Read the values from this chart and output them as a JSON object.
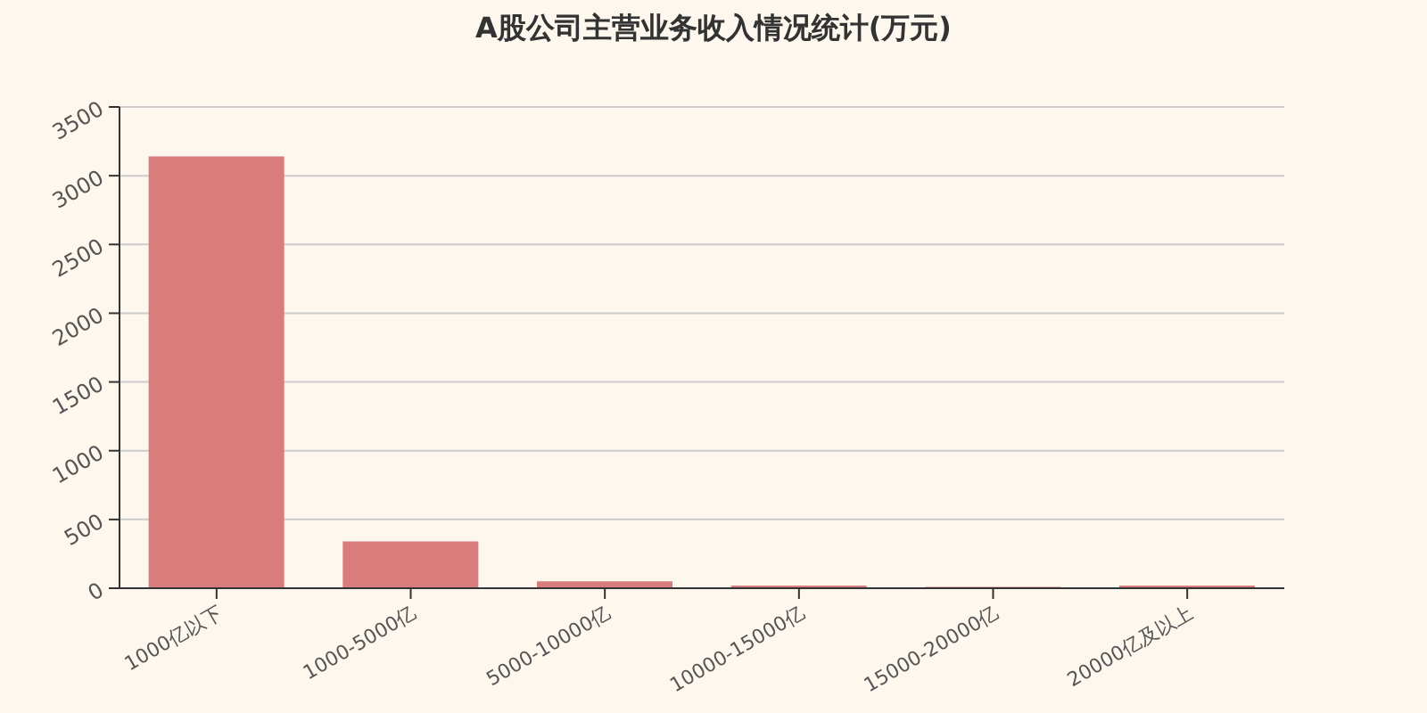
{
  "chart_data": {
    "type": "bar",
    "title": "A股公司主营业务收入情况统计(万元)",
    "categories": [
      "1000亿以下",
      "1000-5000亿",
      "5000-10000亿",
      "10000-15000亿",
      "15000-20000亿",
      "20000亿及以上"
    ],
    "values": [
      3140,
      340,
      50,
      20,
      10,
      20
    ],
    "color": "#d87c7c",
    "ylim": [
      0,
      3500
    ],
    "yticks": [
      0,
      500,
      1000,
      1500,
      2000,
      2500,
      3000,
      3500
    ],
    "grid": "y"
  }
}
